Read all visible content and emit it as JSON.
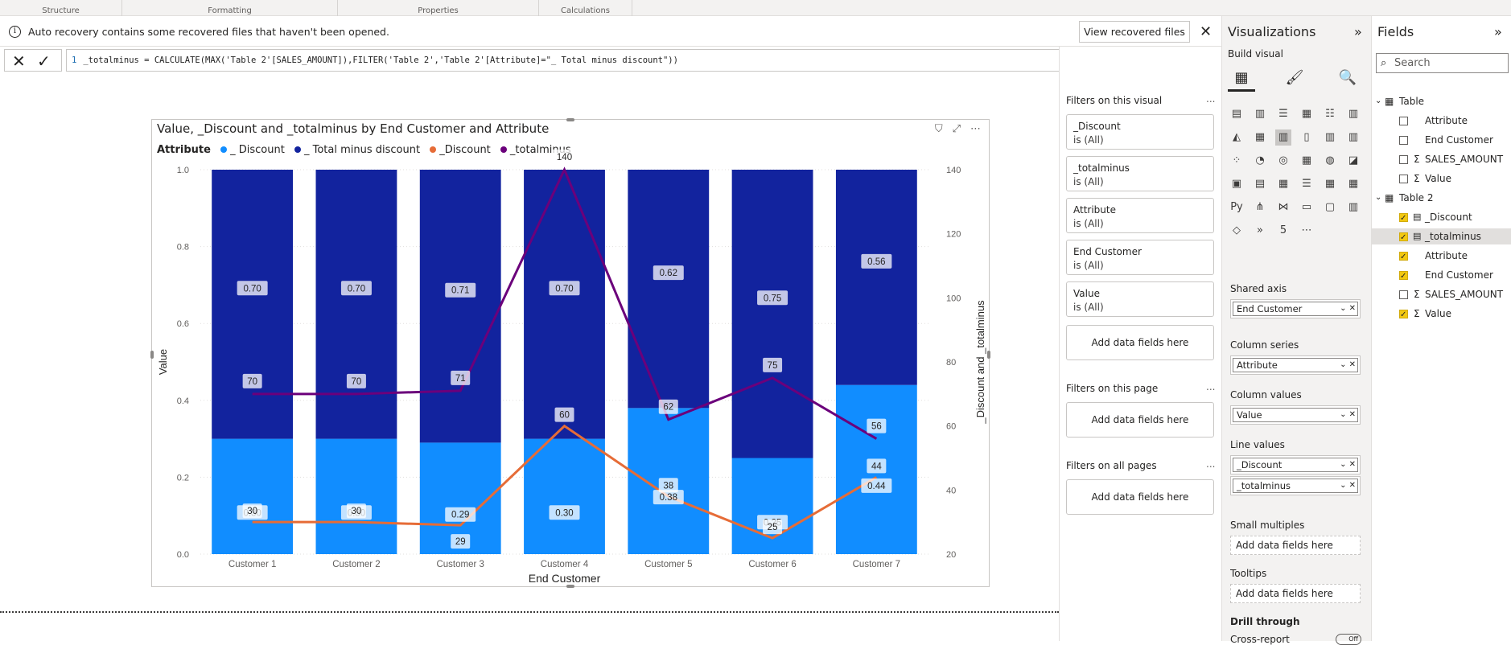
{
  "ribbon": {
    "groups": [
      "Structure",
      "Formatting",
      "Properties",
      "Calculations"
    ]
  },
  "banner": {
    "message": "Auto recovery contains some recovered files that haven't been opened.",
    "view_button": "View recovered files"
  },
  "formula": {
    "line": "1",
    "text": "_totalminus = CALCULATE(MAX('Table 2'[SALES_AMOUNT]),FILTER('Table 2','Table 2'[Attribute]=\"_ Total minus discount\"))"
  },
  "chart": {
    "title": "Value, _Discount and _totalminus by End Customer and Attribute",
    "legend_title": "Attribute",
    "legend": [
      {
        "label": "_ Discount",
        "color": "#118dff"
      },
      {
        "label": "_ Total minus discount",
        "color": "#12239e"
      },
      {
        "label": "_Discount",
        "color": "#e66c37"
      },
      {
        "label": "_totalminus",
        "color": "#6b007b"
      }
    ],
    "x_title": "End Customer",
    "y_title": "Value",
    "y2_title": "_Discount and _totalminus"
  },
  "chart_data": {
    "type": "bar",
    "stacked": "100%",
    "categories": [
      "Customer 1",
      "Customer 2",
      "Customer 3",
      "Customer 4",
      "Customer 5",
      "Customer 6",
      "Customer 7"
    ],
    "series": [
      {
        "name": "_ Discount",
        "values": [
          0.3,
          0.3,
          0.29,
          0.3,
          0.38,
          0.25,
          0.44
        ]
      },
      {
        "name": "_ Total minus discount",
        "values": [
          0.7,
          0.7,
          0.71,
          0.7,
          0.62,
          0.75,
          0.56
        ]
      }
    ],
    "lines": [
      {
        "name": "_Discount",
        "values": [
          30,
          30,
          29,
          60,
          38,
          25,
          44
        ],
        "axis": "right"
      },
      {
        "name": "_totalminus",
        "values": [
          70,
          70,
          71,
          140,
          62,
          75,
          56
        ],
        "axis": "right"
      }
    ],
    "ylim": [
      0,
      1.0
    ],
    "yticks": [
      "0.0",
      "0.2",
      "0.4",
      "0.6",
      "0.8",
      "1.0"
    ],
    "y2lim": [
      20,
      140
    ],
    "y2ticks": [
      "20",
      "40",
      "60",
      "80",
      "100",
      "120",
      "140"
    ]
  },
  "filters": {
    "on_visual_label": "Filters on this visual",
    "cards": [
      {
        "name": "_Discount",
        "sub": "is (All)"
      },
      {
        "name": "_totalminus",
        "sub": "is (All)"
      },
      {
        "name": "Attribute",
        "sub": "is (All)"
      },
      {
        "name": "End Customer",
        "sub": "is (All)"
      },
      {
        "name": "Value",
        "sub": "is (All)"
      }
    ],
    "add_label": "Add data fields here",
    "on_page_label": "Filters on this page",
    "on_all_label": "Filters on all pages",
    "more": "..."
  },
  "viz": {
    "title": "Visualizations",
    "build_visual": "Build visual",
    "shared_axis": "Shared axis",
    "shared_axis_value": "End Customer",
    "column_series": "Column series",
    "column_series_value": "Attribute",
    "column_values": "Column values",
    "column_values_value": "Value",
    "line_values": "Line values",
    "line_values_1": "_Discount",
    "line_values_2": "_totalminus",
    "small_multiples": "Small multiples",
    "tooltips": "Tooltips",
    "add_here": "Add data fields here",
    "drill_through": "Drill through",
    "cross_report": "Cross-report",
    "toggle": "Off"
  },
  "fields": {
    "title": "Fields",
    "search_placeholder": "Search",
    "tables": [
      {
        "name": "Table",
        "items": [
          {
            "label": "Attribute",
            "checked": false,
            "sigma": false
          },
          {
            "label": "End Customer",
            "checked": false,
            "sigma": false
          },
          {
            "label": "SALES_AMOUNT",
            "checked": false,
            "sigma": true
          },
          {
            "label": "Value",
            "checked": false,
            "sigma": true
          }
        ]
      },
      {
        "name": "Table 2",
        "items": [
          {
            "label": "_Discount",
            "checked": true,
            "calc": true
          },
          {
            "label": "_totalminus",
            "checked": true,
            "calc": true
          },
          {
            "label": "Attribute",
            "checked": true
          },
          {
            "label": "End Customer",
            "checked": true
          },
          {
            "label": "SALES_AMOUNT",
            "checked": false,
            "sigma": true
          },
          {
            "label": "Value",
            "checked": true,
            "sigma": true
          }
        ]
      }
    ]
  }
}
